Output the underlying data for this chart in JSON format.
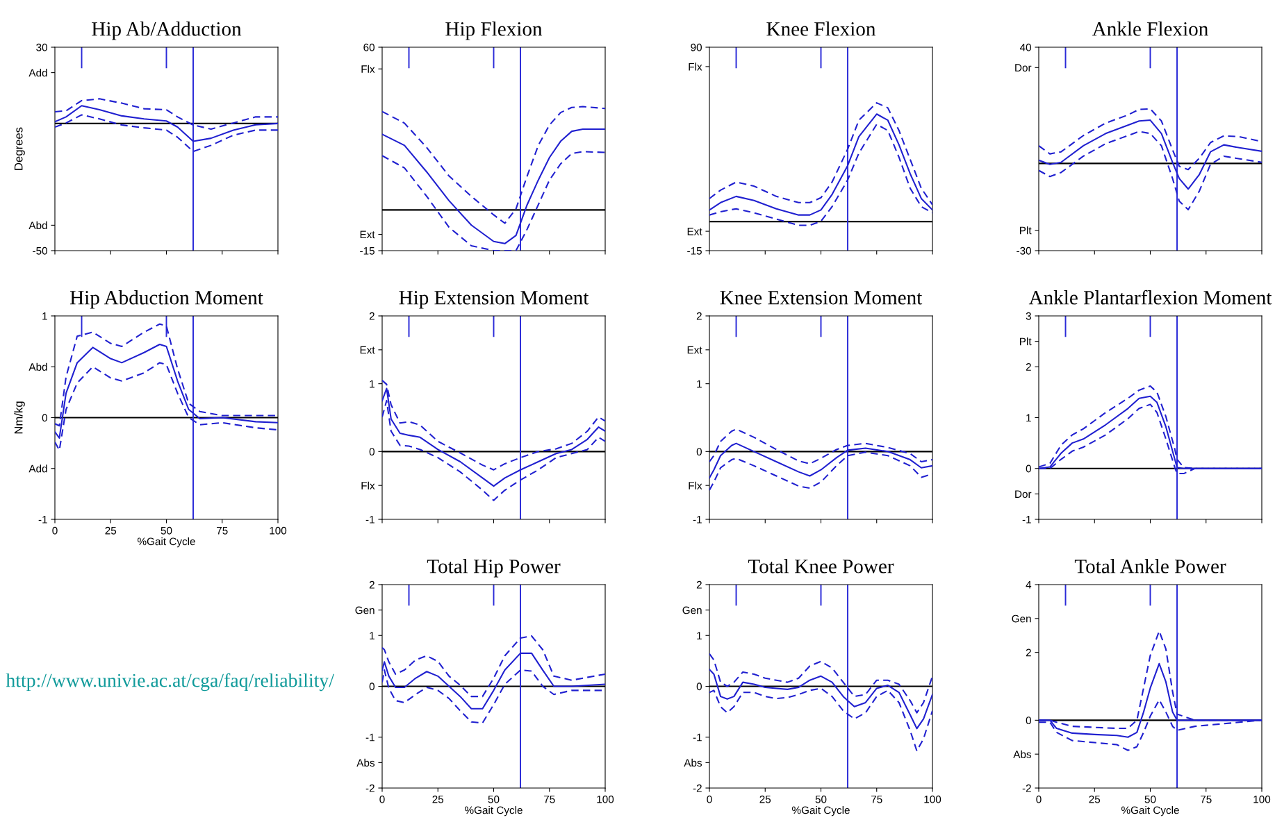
{
  "chart_data": [
    {
      "type": "line",
      "title": "Hip Ab/Adduction",
      "ylabel": "Degrees",
      "x": [
        0,
        5,
        12,
        20,
        30,
        40,
        50,
        55,
        62,
        70,
        80,
        90,
        100
      ],
      "xlim": [
        0,
        100
      ],
      "xticks": [
        0,
        25,
        50,
        75,
        100
      ],
      "ylim": [
        -50,
        30
      ],
      "yticks": [
        30,
        {
          "value": 20,
          "label": "Add"
        },
        {
          "value": -40,
          "label": "Abd"
        },
        -50
      ],
      "tick_labels": "y",
      "grid": false,
      "ref_lines": [
        {
          "axis": "y",
          "value": 0,
          "color": "#000000"
        },
        {
          "axis": "x",
          "value": 62,
          "color": "#2a2ad8"
        },
        {
          "axis": "x",
          "value": 12,
          "color": "#2a2ad8",
          "line_style": "solid"
        },
        {
          "axis": "x",
          "value": 50,
          "color": "#2a2ad8",
          "line_style": "solid"
        }
      ],
      "series": [
        {
          "color": "#2020d0",
          "line_style": "solid",
          "values": [
            0.7,
            2.6,
            7,
            5.4,
            3,
            1.8,
            1,
            -1.4,
            -7,
            -5.8,
            -2.6,
            -0.5,
            0
          ]
        },
        {
          "color": "#2020d0",
          "line_style": "dashed",
          "values": [
            4.6,
            5,
            9,
            9.7,
            8,
            5.8,
            5.4,
            2.6,
            -0.6,
            -2.2,
            0.2,
            2.6,
            2.6
          ]
        },
        {
          "color": "#2020d0",
          "line_style": "dashed",
          "values": [
            -1.4,
            0.2,
            3.4,
            1.8,
            -0.6,
            -1.7,
            -2.6,
            -5.4,
            -11,
            -8.6,
            -4.6,
            -2.6,
            -2.6
          ]
        }
      ]
    },
    {
      "type": "line",
      "title": "Hip Flexion",
      "x": [
        0,
        10,
        20,
        30,
        40,
        50,
        55,
        60,
        65,
        70,
        75,
        80,
        85,
        90,
        100
      ],
      "xlim": [
        0,
        100
      ],
      "xticks": [
        0,
        25,
        50,
        75,
        100
      ],
      "ylim": [
        -15,
        60
      ],
      "yticks": [
        60,
        {
          "value": 52,
          "label": "Flx"
        },
        {
          "value": -9,
          "label": "Ext"
        },
        -15
      ],
      "tick_labels": "y",
      "grid": false,
      "ref_lines": [
        {
          "axis": "y",
          "value": 0,
          "color": "#000000"
        },
        {
          "axis": "x",
          "value": 62,
          "color": "#2a2ad8"
        },
        {
          "axis": "x",
          "value": 12,
          "color": "#2a2ad8",
          "line_style": "solid"
        },
        {
          "axis": "x",
          "value": 50,
          "color": "#2a2ad8",
          "line_style": "solid"
        }
      ],
      "series": [
        {
          "color": "#2020d0",
          "line_style": "solid",
          "values": [
            27.9,
            23.8,
            14,
            3.4,
            -5.6,
            -11.6,
            -12.4,
            -9.4,
            1.9,
            11,
            19.3,
            25.3,
            29,
            29.8,
            29.8
          ]
        },
        {
          "color": "#2020d0",
          "line_style": "dashed",
          "values": [
            36.3,
            32,
            23,
            12.5,
            5,
            -1.8,
            -4.9,
            0.4,
            12.5,
            23.8,
            31.3,
            35.9,
            37.8,
            38.1,
            37.4
          ]
        },
        {
          "color": "#2020d0",
          "line_style": "dashed",
          "values": [
            20,
            15.5,
            5,
            -6.4,
            -13.2,
            -15,
            -15,
            -15,
            -7.1,
            1.9,
            11,
            17,
            20.8,
            21.5,
            21.2
          ]
        }
      ]
    },
    {
      "type": "line",
      "title": "Knee Flexion",
      "x": [
        0,
        5,
        12,
        20,
        30,
        40,
        45,
        50,
        55,
        62,
        67,
        75,
        80,
        85,
        90,
        95,
        100
      ],
      "xlim": [
        0,
        100
      ],
      "xticks": [
        0,
        25,
        50,
        75,
        100
      ],
      "ylim": [
        -15,
        90
      ],
      "yticks": [
        90,
        {
          "value": 80,
          "label": "Flx"
        },
        {
          "value": -5,
          "label": "Ext"
        },
        -15
      ],
      "tick_labels": "y",
      "grid": false,
      "ref_lines": [
        {
          "axis": "y",
          "value": 0,
          "color": "#000000"
        },
        {
          "axis": "x",
          "value": 62,
          "color": "#2a2ad8"
        },
        {
          "axis": "x",
          "value": 12,
          "color": "#2a2ad8",
          "line_style": "solid"
        },
        {
          "axis": "x",
          "value": 50,
          "color": "#2a2ad8",
          "line_style": "solid"
        }
      ],
      "series": [
        {
          "color": "#2020d0",
          "line_style": "solid",
          "values": [
            6,
            9.8,
            13,
            10.9,
            6.6,
            3.4,
            3.4,
            6,
            14,
            28.9,
            43.8,
            55.5,
            52.3,
            39.6,
            24.7,
            11.9,
            6
          ]
        },
        {
          "color": "#2020d0",
          "line_style": "dashed",
          "values": [
            11.9,
            16.2,
            20.4,
            18.3,
            13,
            9.8,
            9.8,
            12.3,
            20.4,
            37.4,
            52.3,
            61.3,
            58.7,
            47,
            32.1,
            17.2,
            8.7
          ]
        },
        {
          "color": "#2020d0",
          "line_style": "dashed",
          "values": [
            3.4,
            5.1,
            6.6,
            4.5,
            1.3,
            -1.9,
            -1.9,
            0.2,
            7.7,
            21.5,
            35.3,
            50.2,
            47,
            33.2,
            17.2,
            7.7,
            4.5
          ]
        }
      ]
    },
    {
      "type": "line",
      "title": "Ankle Flexion",
      "x": [
        0,
        5,
        10,
        20,
        30,
        40,
        45,
        50,
        55,
        60,
        63,
        67,
        72,
        77,
        83,
        90,
        100
      ],
      "xlim": [
        0,
        100
      ],
      "xticks": [
        0,
        25,
        50,
        75,
        100
      ],
      "ylim": [
        -30,
        40
      ],
      "yticks": [
        40,
        {
          "value": 33,
          "label": "Dor"
        },
        {
          "value": -23,
          "label": "Plt"
        },
        -30
      ],
      "tick_labels": "y",
      "grid": false,
      "ref_lines": [
        {
          "axis": "y",
          "value": 0,
          "color": "#000000"
        },
        {
          "axis": "x",
          "value": 62,
          "color": "#2a2ad8"
        },
        {
          "axis": "x",
          "value": 12,
          "color": "#2a2ad8",
          "line_style": "solid"
        },
        {
          "axis": "x",
          "value": 50,
          "color": "#2a2ad8",
          "line_style": "solid"
        }
      ],
      "series": [
        {
          "color": "#2020d0",
          "line_style": "solid",
          "values": [
            1.1,
            -0.3,
            0.4,
            6.1,
            10.3,
            13.2,
            14.6,
            14.9,
            10.3,
            0.4,
            -5.2,
            -8.8,
            -3.8,
            4,
            6.4,
            5.4,
            4.2
          ]
        },
        {
          "color": "#2020d0",
          "line_style": "dashed",
          "values": [
            6.1,
            3.3,
            4,
            9.6,
            13.9,
            16.7,
            18.6,
            18.8,
            14.6,
            4.7,
            -1,
            -2.1,
            1.8,
            7.2,
            9.5,
            9.2,
            7.5
          ]
        },
        {
          "color": "#2020d0",
          "line_style": "dashed",
          "values": [
            -2.4,
            -4.5,
            -3.1,
            2.5,
            6.8,
            9.6,
            11,
            10.3,
            6.1,
            -5.2,
            -13,
            -15.9,
            -9.5,
            -0.3,
            2.5,
            1.6,
            0.4
          ]
        }
      ]
    },
    {
      "type": "line",
      "title": "Hip Abduction Moment",
      "ylabel": "Nm/kg",
      "xlabel": "%Gait Cycle",
      "annotations": [
        "http://www.univie.ac.at/cga/faq/reliability/"
      ],
      "x": [
        0,
        2,
        5,
        10,
        17,
        25,
        30,
        40,
        47,
        50,
        55,
        60,
        65,
        75,
        90,
        100
      ],
      "xlim": [
        0,
        100
      ],
      "xticks": [
        0,
        25,
        50,
        75,
        100
      ],
      "ylim": [
        -1,
        1
      ],
      "yticks": [
        1,
        {
          "value": 0.5,
          "label": "Abd"
        },
        0,
        {
          "value": -0.5,
          "label": "Add"
        },
        -1
      ],
      "grid": false,
      "ref_lines": [
        {
          "axis": "y",
          "value": 0,
          "color": "#000000"
        },
        {
          "axis": "x",
          "value": 62,
          "color": "#2a2ad8"
        },
        {
          "axis": "x",
          "value": 12,
          "color": "#2a2ad8",
          "line_style": "solid"
        },
        {
          "axis": "x",
          "value": 50,
          "color": "#2a2ad8",
          "line_style": "solid"
        }
      ],
      "series": [
        {
          "color": "#2020d0",
          "line_style": "solid",
          "values": [
            -0.14,
            -0.2,
            0.24,
            0.54,
            0.69,
            0.58,
            0.54,
            0.64,
            0.72,
            0.7,
            0.36,
            0.08,
            -0.01,
            0,
            -0.04,
            -0.05
          ]
        },
        {
          "color": "#2020d0",
          "line_style": "dashed",
          "values": [
            -0.06,
            -0.08,
            0.4,
            0.8,
            0.84,
            0.73,
            0.7,
            0.84,
            0.92,
            0.9,
            0.48,
            0.14,
            0.06,
            0.02,
            0.02,
            0.02
          ]
        },
        {
          "color": "#2020d0",
          "line_style": "dashed",
          "values": [
            -0.24,
            -0.32,
            0.08,
            0.34,
            0.5,
            0.39,
            0.36,
            0.44,
            0.54,
            0.52,
            0.24,
            0,
            -0.07,
            -0.05,
            -0.1,
            -0.12
          ]
        }
      ]
    },
    {
      "type": "line",
      "title": "Hip Extension Moment",
      "x": [
        0,
        2,
        4,
        8,
        12,
        17,
        25,
        35,
        45,
        50,
        55,
        62,
        70,
        78,
        85,
        92,
        97,
        100
      ],
      "xlim": [
        0,
        100
      ],
      "xticks": [
        0,
        25,
        50,
        75,
        100
      ],
      "ylim": [
        -1,
        2
      ],
      "yticks": [
        2,
        {
          "value": 1.5,
          "label": "Ext"
        },
        1,
        0,
        {
          "value": -0.5,
          "label": "Flx"
        },
        -1
      ],
      "tick_labels": "y",
      "grid": false,
      "ref_lines": [
        {
          "axis": "y",
          "value": 0,
          "color": "#000000"
        },
        {
          "axis": "x",
          "value": 62,
          "color": "#2a2ad8"
        },
        {
          "axis": "x",
          "value": 12,
          "color": "#2a2ad8",
          "line_style": "solid"
        },
        {
          "axis": "x",
          "value": 50,
          "color": "#2a2ad8",
          "line_style": "solid"
        }
      ],
      "series": [
        {
          "color": "#2020d0",
          "line_style": "solid",
          "values": [
            0.75,
            0.93,
            0.48,
            0.27,
            0.24,
            0.21,
            0.03,
            -0.15,
            -0.39,
            -0.51,
            -0.39,
            -0.27,
            -0.15,
            -0.03,
            0.03,
            0.18,
            0.36,
            0.3
          ]
        },
        {
          "color": "#2020d0",
          "line_style": "dashed",
          "values": [
            1.05,
            0.99,
            0.69,
            0.42,
            0.44,
            0.39,
            0.15,
            -0.02,
            -0.2,
            -0.27,
            -0.18,
            -0.09,
            0,
            0.04,
            0.12,
            0.3,
            0.51,
            0.45
          ]
        },
        {
          "color": "#2020d0",
          "line_style": "dashed",
          "values": [
            0.51,
            0.75,
            0.3,
            0.09,
            0.08,
            0.03,
            -0.09,
            -0.3,
            -0.57,
            -0.72,
            -0.57,
            -0.42,
            -0.27,
            -0.09,
            -0.03,
            0.03,
            0.21,
            0.15
          ]
        }
      ]
    },
    {
      "type": "line",
      "title": "Knee Extension Moment",
      "x": [
        0,
        2,
        5,
        10,
        12,
        20,
        30,
        40,
        45,
        50,
        57,
        62,
        70,
        80,
        90,
        95,
        100
      ],
      "xlim": [
        0,
        100
      ],
      "xticks": [
        0,
        25,
        50,
        75,
        100
      ],
      "ylim": [
        -1,
        2
      ],
      "yticks": [
        2,
        {
          "value": 1.5,
          "label": "Ext"
        },
        1,
        0,
        {
          "value": -0.5,
          "label": "Flx"
        },
        -1
      ],
      "tick_labels": "y",
      "grid": false,
      "ref_lines": [
        {
          "axis": "y",
          "value": 0,
          "color": "#000000"
        },
        {
          "axis": "x",
          "value": 62,
          "color": "#2a2ad8"
        },
        {
          "axis": "x",
          "value": 12,
          "color": "#2a2ad8",
          "line_style": "solid"
        },
        {
          "axis": "x",
          "value": 50,
          "color": "#2a2ad8",
          "line_style": "solid"
        }
      ],
      "series": [
        {
          "color": "#2020d0",
          "line_style": "solid",
          "values": [
            -0.39,
            -0.27,
            -0.06,
            0.09,
            0.12,
            0,
            -0.15,
            -0.3,
            -0.36,
            -0.27,
            -0.09,
            0.02,
            0.05,
            0,
            -0.12,
            -0.24,
            -0.21
          ]
        },
        {
          "color": "#2020d0",
          "line_style": "dashed",
          "values": [
            -0.15,
            -0.06,
            0.15,
            0.3,
            0.33,
            0.21,
            0.03,
            -0.14,
            -0.18,
            -0.1,
            0.03,
            0.09,
            0.12,
            0.06,
            -0.03,
            -0.15,
            -0.12
          ]
        },
        {
          "color": "#2020d0",
          "line_style": "dashed",
          "values": [
            -0.57,
            -0.45,
            -0.24,
            -0.12,
            -0.1,
            -0.21,
            -0.36,
            -0.51,
            -0.54,
            -0.45,
            -0.21,
            -0.06,
            -0.01,
            -0.06,
            -0.21,
            -0.38,
            -0.33
          ]
        }
      ]
    },
    {
      "type": "line",
      "title": "Ankle Plantarflexion Moment",
      "x": [
        0,
        5,
        10,
        15,
        20,
        30,
        40,
        45,
        50,
        53,
        57,
        61,
        62,
        65,
        70,
        100
      ],
      "xlim": [
        0,
        100
      ],
      "xticks": [
        0,
        25,
        50,
        75,
        100
      ],
      "ylim": [
        -1,
        3
      ],
      "yticks": [
        3,
        {
          "value": 2.5,
          "label": "Plt"
        },
        2,
        1,
        0,
        {
          "value": -0.5,
          "label": "Dor"
        },
        -1
      ],
      "tick_labels": "y",
      "grid": false,
      "ref_lines": [
        {
          "axis": "y",
          "value": 0,
          "color": "#000000"
        },
        {
          "axis": "x",
          "value": 62,
          "color": "#2a2ad8"
        },
        {
          "axis": "x",
          "value": 12,
          "color": "#2a2ad8",
          "line_style": "solid"
        },
        {
          "axis": "x",
          "value": 50,
          "color": "#2a2ad8",
          "line_style": "solid"
        }
      ],
      "series": [
        {
          "color": "#2020d0",
          "line_style": "solid",
          "values": [
            0,
            0.03,
            0.3,
            0.5,
            0.58,
            0.86,
            1.18,
            1.38,
            1.42,
            1.3,
            0.82,
            0.18,
            0.02,
            0,
            0,
            0
          ]
        },
        {
          "color": "#2020d0",
          "line_style": "dashed",
          "values": [
            0.03,
            0.1,
            0.46,
            0.66,
            0.78,
            1.1,
            1.38,
            1.54,
            1.62,
            1.5,
            1.02,
            0.38,
            0.18,
            0.02,
            0,
            0
          ]
        },
        {
          "color": "#2020d0",
          "line_style": "dashed",
          "values": [
            0,
            0,
            0.18,
            0.34,
            0.42,
            0.66,
            0.98,
            1.18,
            1.26,
            1.1,
            0.58,
            0.02,
            -0.1,
            -0.1,
            0,
            0
          ]
        }
      ]
    },
    {
      "type": "line",
      "title": "Total Hip Power",
      "xlabel": "%Gait Cycle",
      "x": [
        0,
        1,
        3,
        6,
        10,
        15,
        20,
        25,
        30,
        35,
        40,
        45,
        50,
        55,
        62,
        67,
        72,
        77,
        85,
        100
      ],
      "xlim": [
        0,
        100
      ],
      "xticks": [
        0,
        25,
        50,
        75,
        100
      ],
      "ylim": [
        -2,
        2
      ],
      "yticks": [
        2,
        {
          "value": 1.5,
          "label": "Gen"
        },
        1,
        0,
        -1,
        {
          "value": -1.5,
          "label": "Abs"
        },
        -2
      ],
      "grid": false,
      "ref_lines": [
        {
          "axis": "y",
          "value": 0,
          "color": "#000000"
        },
        {
          "axis": "x",
          "value": 62,
          "color": "#2a2ad8"
        },
        {
          "axis": "x",
          "value": 12,
          "color": "#2a2ad8",
          "line_style": "solid"
        },
        {
          "axis": "x",
          "value": 50,
          "color": "#2a2ad8",
          "line_style": "solid"
        }
      ],
      "series": [
        {
          "color": "#2020d0",
          "line_style": "solid",
          "values": [
            0.32,
            0.48,
            0.2,
            -0.02,
            -0.02,
            0.16,
            0.29,
            0.2,
            0,
            -0.2,
            -0.44,
            -0.44,
            -0.08,
            0.32,
            0.65,
            0.65,
            0.32,
            0,
            0,
            0.04
          ]
        },
        {
          "color": "#2020d0",
          "line_style": "dashed",
          "values": [
            0.76,
            0.72,
            0.48,
            0.24,
            0.32,
            0.52,
            0.6,
            0.49,
            0.2,
            0.02,
            -0.2,
            -0.2,
            0.16,
            0.6,
            0.95,
            0.99,
            0.72,
            0.2,
            0.12,
            0.24
          ]
        },
        {
          "color": "#2020d0",
          "line_style": "dashed",
          "values": [
            0.08,
            0.32,
            -0.04,
            -0.28,
            -0.32,
            -0.16,
            -0.02,
            -0.08,
            -0.24,
            -0.48,
            -0.7,
            -0.72,
            -0.36,
            0.04,
            0.32,
            0.3,
            0,
            -0.16,
            -0.08,
            -0.08
          ]
        }
      ]
    },
    {
      "type": "line",
      "title": "Total Knee Power",
      "xlabel": "%Gait Cycle",
      "x": [
        0,
        2,
        5,
        8,
        11,
        15,
        20,
        25,
        30,
        35,
        40,
        45,
        50,
        55,
        60,
        65,
        70,
        75,
        80,
        85,
        90,
        93,
        96,
        100
      ],
      "xlim": [
        0,
        100
      ],
      "xticks": [
        0,
        25,
        50,
        75,
        100
      ],
      "ylim": [
        -2,
        2
      ],
      "yticks": [
        2,
        {
          "value": 1.5,
          "label": "Gen"
        },
        1,
        0,
        -1,
        {
          "value": -1.5,
          "label": "Abs"
        },
        -2
      ],
      "grid": false,
      "ref_lines": [
        {
          "axis": "y",
          "value": 0,
          "color": "#000000"
        },
        {
          "axis": "x",
          "value": 62,
          "color": "#2a2ad8"
        },
        {
          "axis": "x",
          "value": 12,
          "color": "#2a2ad8",
          "line_style": "solid"
        },
        {
          "axis": "x",
          "value": 50,
          "color": "#2a2ad8",
          "line_style": "solid"
        }
      ],
      "series": [
        {
          "color": "#2020d0",
          "line_style": "solid",
          "values": [
            0.33,
            0.24,
            -0.2,
            -0.25,
            -0.2,
            0.08,
            0.04,
            -0.02,
            -0.04,
            -0.06,
            -0.02,
            0.12,
            0.2,
            0.08,
            -0.2,
            -0.4,
            -0.32,
            -0.04,
            0.02,
            -0.12,
            -0.56,
            -0.83,
            -0.64,
            -0.16
          ]
        },
        {
          "color": "#2020d0",
          "line_style": "dashed",
          "values": [
            0.64,
            0.52,
            0.08,
            0,
            0.08,
            0.28,
            0.24,
            0.16,
            0.12,
            0.08,
            0.16,
            0.4,
            0.49,
            0.36,
            0.08,
            -0.2,
            -0.16,
            0.12,
            0.12,
            0.04,
            -0.28,
            -0.52,
            -0.32,
            0.2
          ]
        },
        {
          "color": "#2020d0",
          "line_style": "dashed",
          "values": [
            -0.12,
            -0.08,
            -0.4,
            -0.52,
            -0.4,
            -0.12,
            -0.12,
            -0.2,
            -0.24,
            -0.22,
            -0.16,
            -0.08,
            -0.04,
            -0.2,
            -0.48,
            -0.64,
            -0.52,
            -0.2,
            -0.08,
            -0.32,
            -0.87,
            -1.27,
            -1.03,
            -0.48
          ]
        }
      ]
    },
    {
      "type": "line",
      "title": "Total Ankle Power",
      "xlabel": "%Gait Cycle",
      "x": [
        0,
        5,
        8,
        15,
        25,
        35,
        40,
        44,
        47,
        50,
        54,
        57,
        60,
        62,
        70,
        100
      ],
      "xlim": [
        0,
        100
      ],
      "xticks": [
        0,
        25,
        50,
        75,
        100
      ],
      "ylim": [
        -2,
        4
      ],
      "yticks": [
        4,
        {
          "value": 3,
          "label": "Gen"
        },
        2,
        0,
        {
          "value": -1,
          "label": "Abs"
        },
        -2
      ],
      "grid": false,
      "ref_lines": [
        {
          "axis": "y",
          "value": 0,
          "color": "#000000"
        },
        {
          "axis": "x",
          "value": 62,
          "color": "#2a2ad8"
        },
        {
          "axis": "x",
          "value": 12,
          "color": "#2a2ad8",
          "line_style": "solid"
        },
        {
          "axis": "x",
          "value": 50,
          "color": "#2a2ad8",
          "line_style": "solid"
        }
      ],
      "series": [
        {
          "color": "#2020d0",
          "line_style": "solid",
          "values": [
            0,
            0,
            -0.24,
            -0.38,
            -0.42,
            -0.45,
            -0.5,
            -0.36,
            0.24,
            0.95,
            1.67,
            1.13,
            0.24,
            0,
            0,
            0
          ]
        },
        {
          "color": "#2020d0",
          "line_style": "dashed",
          "values": [
            0,
            0,
            -0.06,
            -0.18,
            -0.21,
            -0.24,
            -0.24,
            0,
            0.95,
            1.91,
            2.63,
            2.1,
            0.84,
            0.18,
            0,
            0
          ]
        },
        {
          "color": "#2020d0",
          "line_style": "dashed",
          "values": [
            -0.06,
            -0.06,
            -0.36,
            -0.6,
            -0.66,
            -0.72,
            -0.89,
            -0.78,
            -0.36,
            0.12,
            0.6,
            0.24,
            -0.18,
            -0.3,
            -0.18,
            0
          ]
        }
      ]
    }
  ]
}
